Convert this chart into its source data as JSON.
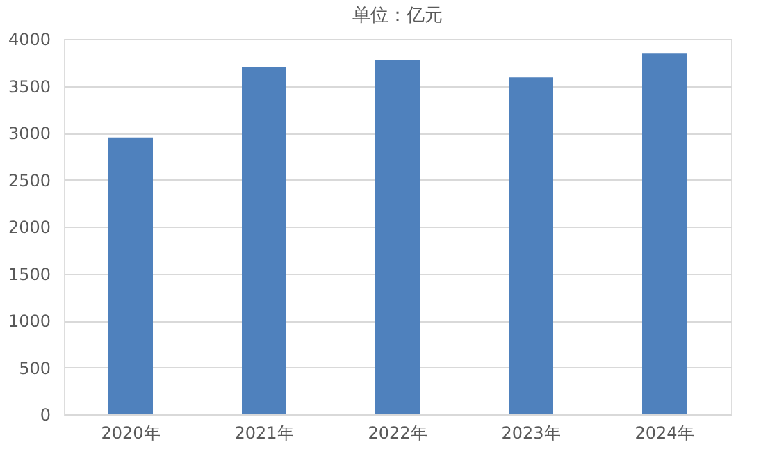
{
  "chart_data": {
    "type": "bar",
    "title": "单位：亿元",
    "categories": [
      "2020年",
      "2021年",
      "2022年",
      "2023年",
      "2024年"
    ],
    "values": [
      2950,
      3700,
      3770,
      3590,
      3850
    ],
    "color": "#4f81bd",
    "ylim": [
      0,
      4000
    ],
    "yticks": [
      0,
      500,
      1000,
      1500,
      2000,
      2500,
      3000,
      3500,
      4000
    ],
    "grid": "y"
  }
}
